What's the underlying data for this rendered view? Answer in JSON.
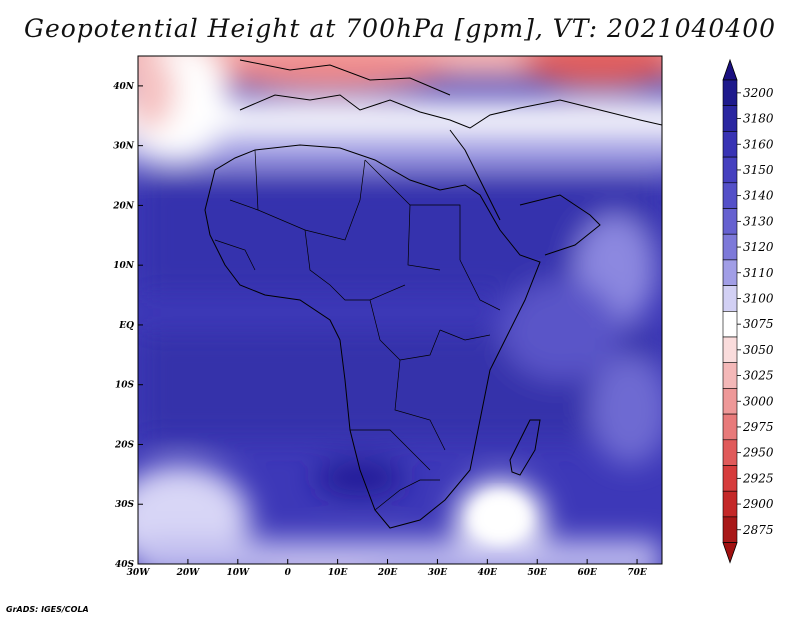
{
  "title": "Geopotential Height at 700hPa [gpm], VT: 2021040400",
  "credit": "GrADS: IGES/COLA",
  "map": {
    "region": "Africa",
    "projection": "latlon",
    "lon_range": [
      -30,
      75
    ],
    "lat_range": [
      -40,
      45
    ],
    "lon_ticks": [
      {
        "value": -30,
        "label": "30W"
      },
      {
        "value": -20,
        "label": "20W"
      },
      {
        "value": -10,
        "label": "10W"
      },
      {
        "value": 0,
        "label": "0"
      },
      {
        "value": 10,
        "label": "10E"
      },
      {
        "value": 20,
        "label": "20E"
      },
      {
        "value": 30,
        "label": "30E"
      },
      {
        "value": 40,
        "label": "40E"
      },
      {
        "value": 50,
        "label": "50E"
      },
      {
        "value": 60,
        "label": "60E"
      },
      {
        "value": 70,
        "label": "70E"
      }
    ],
    "lat_ticks": [
      {
        "value": 40,
        "label": "40N"
      },
      {
        "value": 30,
        "label": "30N"
      },
      {
        "value": 20,
        "label": "20N"
      },
      {
        "value": 10,
        "label": "10N"
      },
      {
        "value": 0,
        "label": "EQ"
      },
      {
        "value": -10,
        "label": "10S"
      },
      {
        "value": -20,
        "label": "20S"
      },
      {
        "value": -30,
        "label": "30S"
      },
      {
        "value": -40,
        "label": "40S"
      }
    ]
  },
  "colorbar": {
    "levels": [
      {
        "label": "3200",
        "color": "#1e1a8c"
      },
      {
        "label": "3180",
        "color": "#2a26a0"
      },
      {
        "label": "3160",
        "color": "#3833b4"
      },
      {
        "label": "3150",
        "color": "#4540bf"
      },
      {
        "label": "3140",
        "color": "#5450c8"
      },
      {
        "label": "3130",
        "color": "#6661d0"
      },
      {
        "label": "3120",
        "color": "#7d79d9"
      },
      {
        "label": "3110",
        "color": "#a19ee6"
      },
      {
        "label": "3100",
        "color": "#d2d0f4"
      },
      {
        "label": "3075",
        "color": "#ffffff"
      },
      {
        "label": "3050",
        "color": "#fadcdc"
      },
      {
        "label": "3025",
        "color": "#f4b8b8"
      },
      {
        "label": "3000",
        "color": "#ee9898"
      },
      {
        "label": "2975",
        "color": "#e87a7a"
      },
      {
        "label": "2950",
        "color": "#e05a5a"
      },
      {
        "label": "2925",
        "color": "#d63c3c"
      },
      {
        "label": "2900",
        "color": "#c42828"
      },
      {
        "label": "2875",
        "color": "#a81818"
      }
    ],
    "top_cap_color": "#1a1080",
    "bottom_cap_color": "#a01010"
  }
}
